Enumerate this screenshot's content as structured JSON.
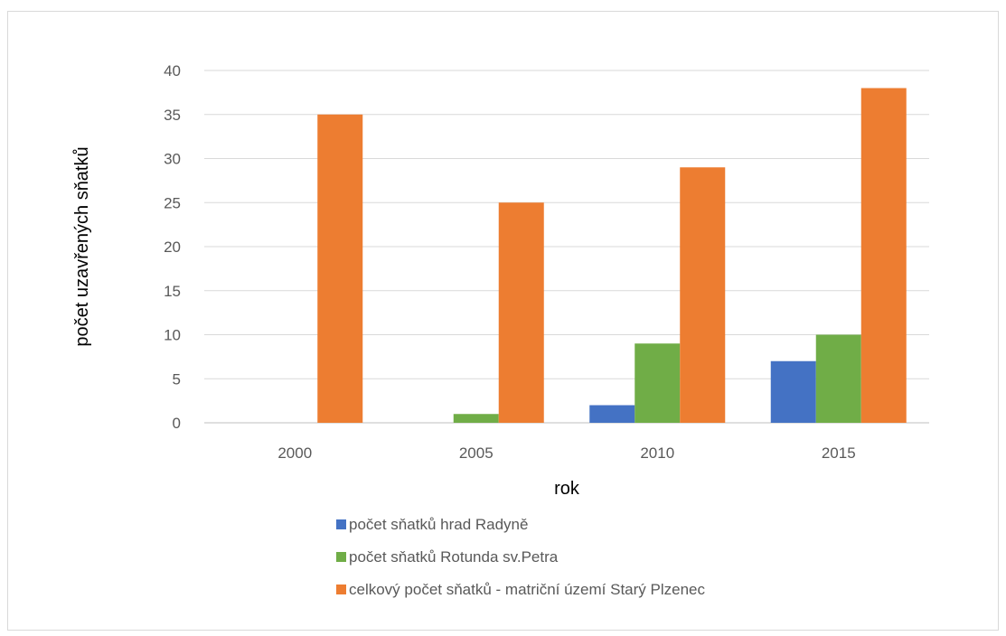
{
  "chart_data": {
    "type": "bar",
    "categories": [
      "2000",
      "2005",
      "2010",
      "2015"
    ],
    "series": [
      {
        "name": "počet sňatků hrad Radyně",
        "values": [
          0,
          0,
          2,
          7
        ],
        "color": "#4472c4"
      },
      {
        "name": "počet sňatků Rotunda sv.Petra",
        "values": [
          0,
          1,
          9,
          10
        ],
        "color": "#70ad47"
      },
      {
        "name": "celkový počet sňatků - matriční území Starý Plzenec",
        "values": [
          35,
          25,
          29,
          38
        ],
        "color": "#ed7d31"
      }
    ],
    "xlabel": "rok",
    "ylabel": "počet uzavřených sňatků",
    "ylim": [
      0,
      40
    ],
    "yticks": [
      0,
      5,
      10,
      15,
      20,
      25,
      30,
      35,
      40
    ],
    "grid": true,
    "legend_position": "bottom"
  }
}
